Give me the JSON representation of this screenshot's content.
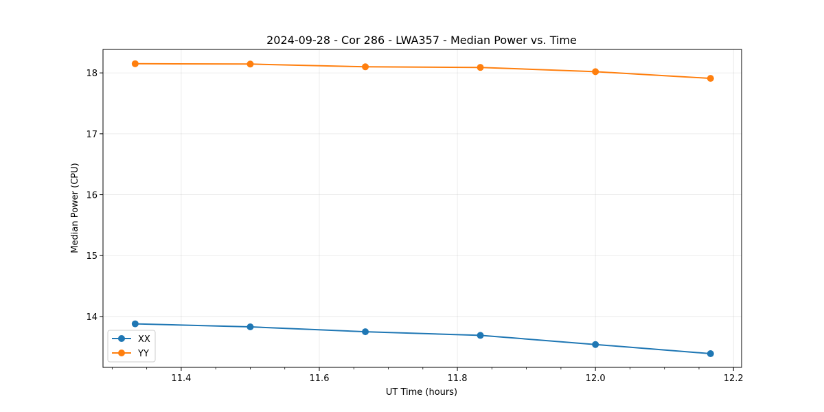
{
  "chart_data": {
    "type": "line",
    "title": "2024-09-28 - Cor 286 - LWA357 - Median Power vs. Time",
    "xlabel": "UT Time (hours)",
    "ylabel": "Median Power (CPU)",
    "xlim": [
      11.2867,
      12.2117
    ],
    "ylim": [
      13.165,
      18.385
    ],
    "x_ticks": [
      11.4,
      11.6,
      11.8,
      12.0,
      12.2
    ],
    "x_tick_labels": [
      "11.4",
      "11.6",
      "11.8",
      "12.0",
      "12.2"
    ],
    "y_ticks": [
      14,
      15,
      16,
      17,
      18
    ],
    "y_tick_labels": [
      "14",
      "15",
      "16",
      "17",
      "18"
    ],
    "grid": true,
    "legend_location": "lower-left",
    "x": [
      11.3333,
      11.5,
      11.6667,
      11.8333,
      12.0,
      12.1667
    ],
    "series": [
      {
        "name": "XX",
        "color": "#1f77b4",
        "values": [
          13.88,
          13.83,
          13.75,
          13.69,
          13.54,
          13.39
        ]
      },
      {
        "name": "YY",
        "color": "#ff7f0e",
        "values": [
          18.15,
          18.145,
          18.1,
          18.09,
          18.02,
          17.91
        ]
      }
    ]
  }
}
